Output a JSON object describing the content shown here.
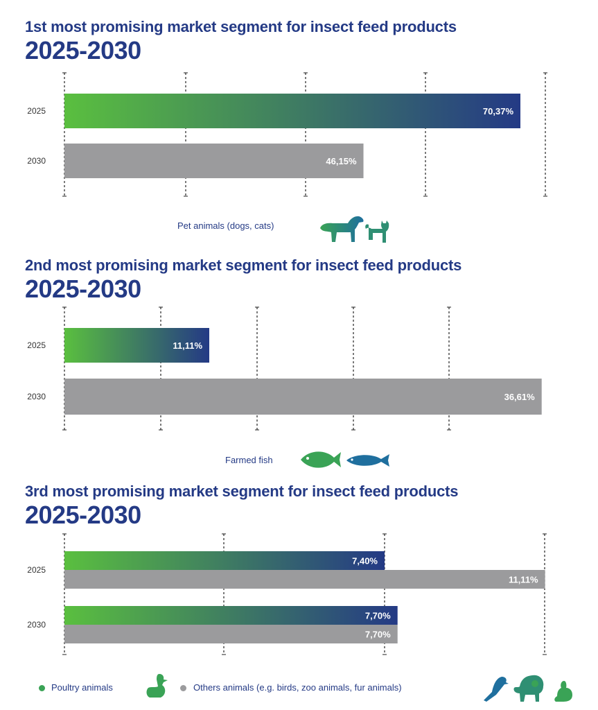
{
  "colors": {
    "title": "#243a85",
    "gradient_start": "#5abf3f",
    "gradient_end": "#243a85",
    "grey_bar": "#9b9b9d",
    "icon_green": "#3aa356",
    "icon_blue": "#1f6f9e"
  },
  "charts": [
    {
      "title": "1st most promising market segment for insect feed products",
      "period": "2025-2030",
      "caption": "Pet animals (dogs, cats)",
      "icons": [
        "dog-icon",
        "cat-icon"
      ]
    },
    {
      "title": "2nd most promising market segment for insect feed products",
      "period": "2025-2030",
      "caption": "Farmed fish",
      "icons": [
        "fish-icon",
        "fish-icon"
      ]
    },
    {
      "title": "3rd most promising market segment for insect feed products",
      "period": "2025-2030",
      "caption": "",
      "icons": []
    }
  ],
  "legend": {
    "poultry": "Poultry animals",
    "others": "Others animals (e.g. birds, zoo animals, fur animals)"
  },
  "chart_data": [
    {
      "type": "bar",
      "orientation": "horizontal",
      "title": "1st most promising market segment for insect feed products",
      "subtitle": "2025-2030",
      "categories": [
        "2025",
        "2030"
      ],
      "series": [
        {
          "name": "Pet animals (dogs, cats)",
          "values": [
            70.37,
            46.15
          ],
          "labels": [
            "70,37%",
            "46,15%"
          ]
        }
      ],
      "xlim": [
        0,
        75
      ],
      "grid": true
    },
    {
      "type": "bar",
      "orientation": "horizontal",
      "title": "2nd most promising market segment for insect feed products",
      "subtitle": "2025-2030",
      "categories": [
        "2025",
        "2030"
      ],
      "series": [
        {
          "name": "Farmed fish",
          "values": [
            11.11,
            36.61
          ],
          "labels": [
            "11,11%",
            "36,61%"
          ]
        }
      ],
      "xlim": [
        0,
        40
      ],
      "grid": true
    },
    {
      "type": "bar",
      "orientation": "horizontal",
      "title": "3rd most promising market segment for insect feed products",
      "subtitle": "2025-2030",
      "categories": [
        "2025",
        "2030"
      ],
      "series": [
        {
          "name": "Poultry animals",
          "values": [
            7.4,
            7.7
          ],
          "labels": [
            "7,40%",
            "7,70%"
          ]
        },
        {
          "name": "Others animals (e.g. birds, zoo animals, fur animals)",
          "values": [
            11.11,
            7.7
          ],
          "labels": [
            "11,11%",
            "7,70%"
          ]
        }
      ],
      "xlim": [
        0,
        12
      ],
      "grid": true,
      "legend": "bottom"
    }
  ]
}
